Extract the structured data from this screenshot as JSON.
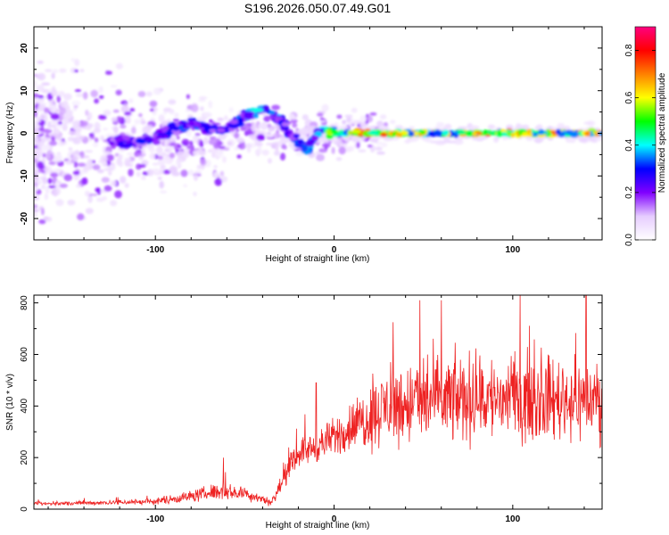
{
  "title": "S196.2026.050.07.49.G01",
  "chart_data": [
    {
      "type": "heatmap",
      "name": "spectrogram",
      "xlabel": "Height of straight line (km)",
      "ylabel": "Frequency (Hz)",
      "xlim": [
        -168,
        150
      ],
      "ylim": [
        -25,
        25
      ],
      "xticks": [
        -100,
        0,
        100
      ],
      "yticks": [
        -20,
        -10,
        0,
        10,
        20
      ],
      "colorbar": {
        "label": "Normalized spectral amplitude",
        "range": [
          0.0,
          0.9
        ],
        "ticks": [
          0.0,
          0.2,
          0.4,
          0.6,
          0.8
        ],
        "colormap": [
          "#ffffff",
          "#e6ccff",
          "#8000ff",
          "#0000ff",
          "#00ffff",
          "#00ff00",
          "#ffff00",
          "#ff8000",
          "#ff0000",
          "#ff0080"
        ]
      },
      "ridge": {
        "description": "dominant frequency track (Hz) vs height (km)",
        "x": [
          -125,
          -110,
          -100,
          -90,
          -80,
          -70,
          -60,
          -50,
          -45,
          -40,
          -35,
          -30,
          -25,
          -20,
          -15,
          -10,
          -5,
          0,
          10,
          20,
          40,
          60,
          80,
          100,
          120,
          150
        ],
        "y": [
          -2,
          -2,
          -1,
          1,
          2,
          1,
          1,
          4,
          5,
          6,
          5,
          3,
          0,
          -2,
          -4,
          0,
          1,
          0,
          0,
          0,
          0,
          0,
          0,
          0,
          0,
          0
        ],
        "amplitude": [
          0.25,
          0.3,
          0.3,
          0.3,
          0.35,
          0.3,
          0.3,
          0.35,
          0.4,
          0.45,
          0.4,
          0.35,
          0.3,
          0.35,
          0.4,
          0.4,
          0.55,
          0.6,
          0.75,
          0.8,
          0.65,
          0.65,
          0.7,
          0.75,
          0.7,
          0.7
        ]
      }
    },
    {
      "type": "line",
      "name": "snr",
      "xlabel": "Height of straight line (km)",
      "ylabel": "SNR (10 * v/v)",
      "xlim": [
        -168,
        150
      ],
      "ylim": [
        0,
        830
      ],
      "xticks": [
        -100,
        0,
        100
      ],
      "yticks": [
        0,
        200,
        400,
        600,
        800
      ],
      "color": "#ee2222",
      "envelope": {
        "description": "approximate SNR baseline and noise amplitude vs height",
        "x": [
          -168,
          -130,
          -100,
          -80,
          -65,
          -50,
          -40,
          -35,
          -25,
          -20,
          -10,
          -5,
          0,
          10,
          20,
          30,
          50,
          80,
          110,
          150
        ],
        "baseline": [
          20,
          25,
          30,
          50,
          70,
          60,
          40,
          25,
          160,
          220,
          240,
          260,
          280,
          320,
          360,
          400,
          420,
          430,
          430,
          420
        ],
        "noise": [
          10,
          12,
          18,
          30,
          45,
          35,
          25,
          20,
          60,
          70,
          80,
          90,
          100,
          130,
          170,
          200,
          230,
          230,
          220,
          200
        ]
      },
      "peaks": [
        {
          "x": -62,
          "y": 200
        },
        {
          "x": -10,
          "y": 490
        },
        {
          "x": 33,
          "y": 725
        },
        {
          "x": 48,
          "y": 810
        },
        {
          "x": 60,
          "y": 810
        },
        {
          "x": 141,
          "y": 830
        }
      ]
    }
  ]
}
